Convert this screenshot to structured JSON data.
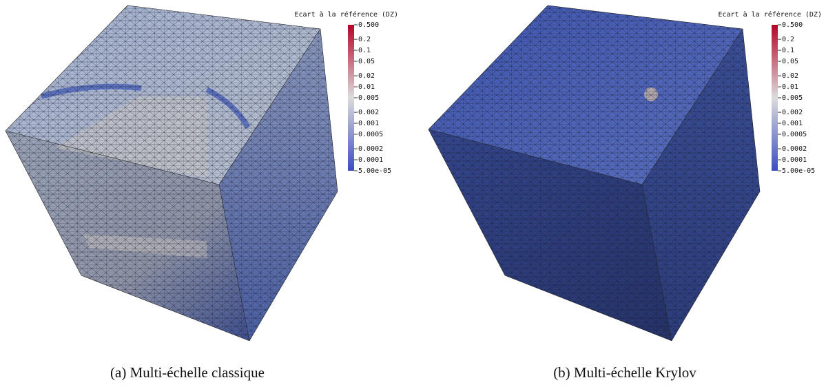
{
  "panels": [
    {
      "caption": "(a) Multi-échelle classique",
      "colorbar": {
        "title": "Ecart à la référence (DZ)",
        "log": true,
        "range": [
          5e-05,
          0.5
        ],
        "ticks": [
          {
            "value": 0.5,
            "label": "0.500"
          },
          0.2,
          0.1,
          0.05,
          0.02,
          0.01,
          0.005,
          0.002,
          0.001,
          0.0005,
          0.0002,
          0.0001,
          {
            "value": 5e-05,
            "label": "5.00e-05"
          }
        ]
      }
    },
    {
      "caption": "(b) Multi-échelle Krylov",
      "colorbar": {
        "title": "Ecart à la référence (DZ)",
        "log": true,
        "range": [
          5e-05,
          0.5
        ],
        "ticks": [
          {
            "value": 0.5,
            "label": "0.500"
          },
          0.2,
          0.1,
          0.05,
          0.02,
          0.01,
          0.005,
          0.002,
          0.001,
          0.0005,
          0.0002,
          0.0001,
          {
            "value": 5e-05,
            "label": "5.00e-05"
          }
        ]
      }
    }
  ]
}
